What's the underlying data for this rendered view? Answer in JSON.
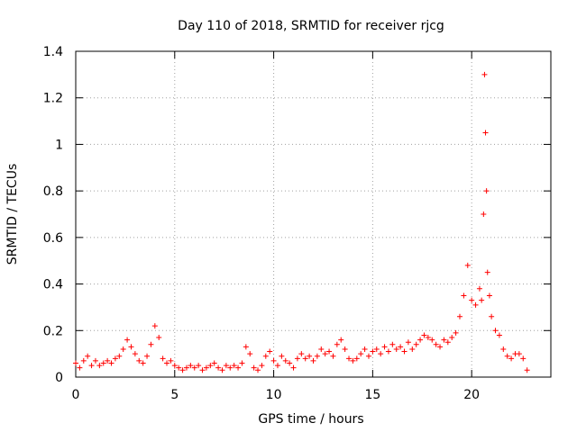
{
  "chart_data": {
    "type": "scatter",
    "title": "Day 110 of 2018, SRMTID for receiver rjcg",
    "xlabel": "GPS time / hours",
    "ylabel": "SRMTID / TECUs",
    "xlim": [
      0,
      24
    ],
    "ylim": [
      0,
      1.4
    ],
    "xticks": [
      "0",
      "5",
      "10",
      "15",
      "20"
    ],
    "xtick_values": [
      0,
      5,
      10,
      15,
      20
    ],
    "yticks": [
      "0",
      "0.2",
      "0.4",
      "0.6",
      "0.8",
      "1",
      "1.2",
      "1.4"
    ],
    "ytick_values": [
      0,
      0.2,
      0.4,
      0.6,
      0.8,
      1.0,
      1.2,
      1.4
    ],
    "grid": true,
    "marker": "+",
    "series": [
      {
        "name": "SRMTID",
        "color": "#ff0000",
        "x": [
          0.0,
          0.2,
          0.4,
          0.6,
          0.8,
          1.0,
          1.2,
          1.4,
          1.6,
          1.8,
          2.0,
          2.2,
          2.4,
          2.6,
          2.8,
          3.0,
          3.2,
          3.4,
          3.6,
          3.8,
          4.0,
          4.2,
          4.4,
          4.6,
          4.8,
          5.0,
          5.2,
          5.4,
          5.6,
          5.8,
          6.0,
          6.2,
          6.4,
          6.6,
          6.8,
          7.0,
          7.2,
          7.4,
          7.6,
          7.8,
          8.0,
          8.2,
          8.4,
          8.6,
          8.8,
          9.0,
          9.2,
          9.4,
          9.6,
          9.8,
          10.0,
          10.2,
          10.4,
          10.6,
          10.8,
          11.0,
          11.2,
          11.4,
          11.6,
          11.8,
          12.0,
          12.2,
          12.4,
          12.6,
          12.8,
          13.0,
          13.2,
          13.4,
          13.6,
          13.8,
          14.0,
          14.2,
          14.4,
          14.6,
          14.8,
          15.0,
          15.2,
          15.4,
          15.6,
          15.8,
          16.0,
          16.2,
          16.4,
          16.6,
          16.8,
          17.0,
          17.2,
          17.4,
          17.6,
          17.8,
          18.0,
          18.2,
          18.4,
          18.6,
          18.8,
          19.0,
          19.2,
          19.4,
          19.6,
          19.8,
          20.0,
          20.2,
          20.4,
          20.5,
          20.6,
          20.65,
          20.7,
          20.75,
          20.8,
          20.9,
          21.0,
          21.2,
          21.4,
          21.6,
          21.8,
          22.0,
          22.2,
          22.4,
          22.6,
          22.8
        ],
        "y": [
          0.06,
          0.04,
          0.07,
          0.09,
          0.05,
          0.07,
          0.05,
          0.06,
          0.07,
          0.06,
          0.08,
          0.09,
          0.12,
          0.16,
          0.13,
          0.1,
          0.07,
          0.06,
          0.09,
          0.14,
          0.22,
          0.17,
          0.08,
          0.06,
          0.07,
          0.05,
          0.04,
          0.03,
          0.04,
          0.05,
          0.04,
          0.05,
          0.03,
          0.04,
          0.05,
          0.06,
          0.04,
          0.03,
          0.05,
          0.04,
          0.05,
          0.04,
          0.06,
          0.13,
          0.1,
          0.04,
          0.03,
          0.05,
          0.09,
          0.11,
          0.07,
          0.05,
          0.09,
          0.07,
          0.06,
          0.04,
          0.08,
          0.1,
          0.08,
          0.09,
          0.07,
          0.09,
          0.12,
          0.1,
          0.11,
          0.09,
          0.14,
          0.16,
          0.12,
          0.08,
          0.07,
          0.08,
          0.1,
          0.12,
          0.09,
          0.11,
          0.12,
          0.1,
          0.13,
          0.11,
          0.14,
          0.12,
          0.13,
          0.11,
          0.15,
          0.12,
          0.14,
          0.16,
          0.18,
          0.17,
          0.16,
          0.14,
          0.13,
          0.16,
          0.15,
          0.17,
          0.19,
          0.26,
          0.35,
          0.48,
          0.33,
          0.31,
          0.38,
          0.33,
          0.7,
          1.3,
          1.05,
          0.8,
          0.45,
          0.35,
          0.26,
          0.2,
          0.18,
          0.12,
          0.09,
          0.08,
          0.1,
          0.1,
          0.08,
          0.03
        ]
      }
    ]
  }
}
